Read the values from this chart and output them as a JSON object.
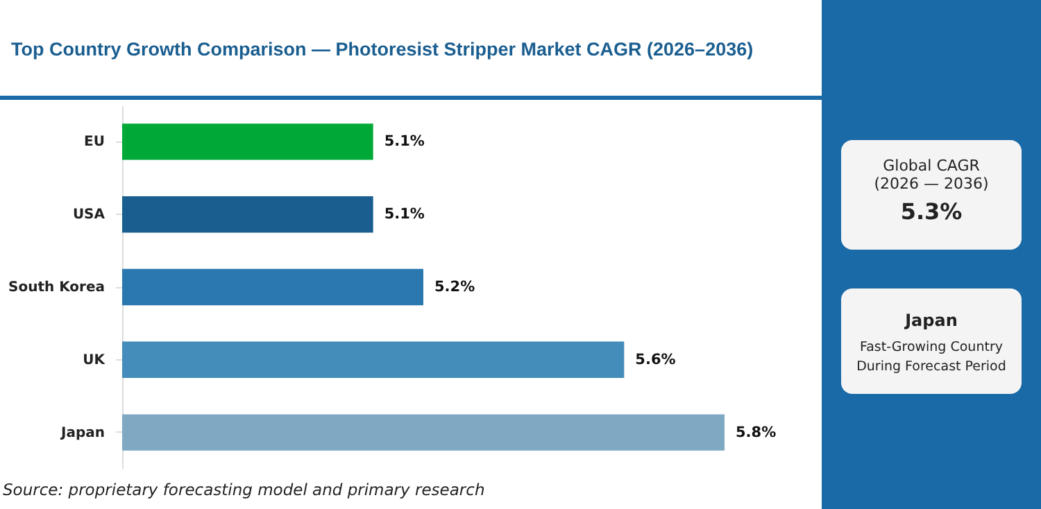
{
  "chart_data": {
    "type": "bar",
    "title": "Top Country Growth Comparison — Photoresist Stripper Market CAGR (2026–2036)",
    "orientation": "horizontal",
    "categories": [
      "EU",
      "USA",
      "South Korea",
      "UK",
      "Japan"
    ],
    "values": [
      5.1,
      5.1,
      5.2,
      5.6,
      5.8
    ],
    "colors": [
      "#00a838",
      "#1a5e90",
      "#2a78ad",
      "#448cba",
      "#7fa8c2"
    ],
    "value_labels": [
      "5.1%",
      "5.1%",
      "5.2%",
      "5.6%",
      "5.8%"
    ],
    "xlim": [
      4.6,
      5.8
    ],
    "tick_labels": "y",
    "grid": false,
    "annotations": [
      "Global CAGR",
      "(2026 — 2036)",
      "5.3%",
      "Japan",
      "Fast-Growing Country During Forecast Period",
      "Source: proprietary forecasting model and primary research"
    ]
  }
}
